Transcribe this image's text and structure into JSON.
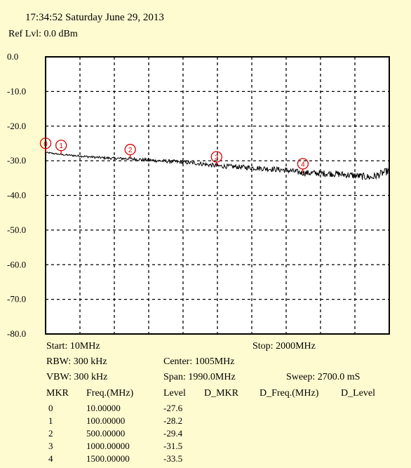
{
  "header": {
    "timestamp": "17:34:52 Saturday June 29, 2013",
    "ref_level": "Ref Lvl: 0.0 dBm"
  },
  "chart_data": {
    "type": "line",
    "ylim": [
      -80,
      0
    ],
    "yticks": [
      "0.0",
      "-10.0",
      "-20.0",
      "-30.0",
      "-40.0",
      "-50.0",
      "-60.0",
      "-70.0",
      "-80.0"
    ],
    "xlim": [
      10,
      2000
    ],
    "x_unit": "MHz",
    "y_unit": "dBm",
    "grid": true,
    "series": [
      {
        "x": [
          10,
          100,
          200,
          300,
          400,
          500,
          600,
          700,
          800,
          900,
          1000,
          1100,
          1200,
          1300,
          1400,
          1500,
          1600,
          1700,
          1800,
          1900,
          2000
        ],
        "values": [
          -27.6,
          -28.2,
          -28.6,
          -29.0,
          -29.3,
          -29.4,
          -29.8,
          -30.1,
          -30.4,
          -30.8,
          -31.5,
          -31.7,
          -32.0,
          -32.3,
          -32.7,
          -33.5,
          -33.6,
          -33.8,
          -34.3,
          -34.8,
          -32.8
        ],
        "color": "#000000"
      }
    ],
    "markers": [
      {
        "id": "0",
        "x": 10,
        "y": -27.6
      },
      {
        "id": "1",
        "x": 100,
        "y": -28.2
      },
      {
        "id": "2",
        "x": 500,
        "y": -29.4
      },
      {
        "id": "3",
        "x": 1000,
        "y": -31.5
      },
      {
        "id": "4",
        "x": 1500,
        "y": -33.5
      }
    ],
    "marker_color": "#d40000"
  },
  "settings": {
    "start": "Start: 10MHz",
    "stop": "Stop: 2000MHz",
    "rbw": "RBW: 300 kHz",
    "center": "Center: 1005MHz",
    "vbw": "VBW: 300 kHz",
    "span": "Span: 1990.0MHz",
    "sweep": "Sweep: 2700.0 mS"
  },
  "marker_table": {
    "headers": [
      "MKR",
      "Freq.(MHz)",
      "Level",
      "D_MKR",
      "D_Freq.(MHz)",
      "D_Level"
    ],
    "rows": [
      [
        "0",
        "10.00000",
        "-27.6"
      ],
      [
        "1",
        "100.00000",
        "-28.2"
      ],
      [
        "2",
        "500.00000",
        "-29.4"
      ],
      [
        "3",
        "1000.00000",
        "-31.5"
      ],
      [
        "4",
        "1500.00000",
        "-33.5"
      ]
    ]
  }
}
